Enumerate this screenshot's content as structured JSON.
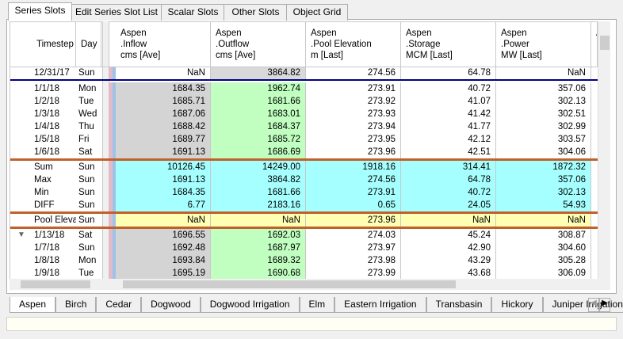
{
  "tabs": [
    "Series Slots",
    "Edit Series Slot List",
    "Scalar Slots",
    "Other Slots",
    "Object Grid"
  ],
  "grid": {
    "row_header_labels": [
      "Timestep",
      "Day"
    ],
    "columns": [
      [
        "Aspen",
        ".Inflow",
        "cms [Ave]"
      ],
      [
        "Aspen",
        ".Outflow",
        "cms [Ave]"
      ],
      [
        "Aspen",
        ".Pool Elevation",
        "m [Last]"
      ],
      [
        "Aspen",
        ".Storage",
        "MCM [Last]"
      ],
      [
        "Aspen",
        ".Power",
        "MW [Last]"
      ],
      [
        "A",
        "."
      ]
    ],
    "initial_rows": [
      {
        "timestep": "12/31/17",
        "day": "Sun",
        "cells": [
          "NaN",
          "3864.82",
          "274.56",
          "64.78",
          "NaN"
        ]
      }
    ],
    "rows": [
      {
        "timestep": "1/1/18",
        "day": "Mon",
        "cells": [
          "1684.35",
          "1962.74",
          "273.91",
          "40.72",
          "357.06"
        ]
      },
      {
        "timestep": "1/2/18",
        "day": "Tue",
        "cells": [
          "1685.71",
          "1681.66",
          "273.92",
          "41.07",
          "302.13"
        ]
      },
      {
        "timestep": "1/3/18",
        "day": "Wed",
        "cells": [
          "1687.06",
          "1683.01",
          "273.93",
          "41.42",
          "302.51"
        ]
      },
      {
        "timestep": "1/4/18",
        "day": "Thu",
        "cells": [
          "1688.42",
          "1684.37",
          "273.94",
          "41.77",
          "302.99"
        ]
      },
      {
        "timestep": "1/5/18",
        "day": "Fri",
        "cells": [
          "1689.77",
          "1685.72",
          "273.95",
          "42.12",
          "303.57"
        ]
      },
      {
        "timestep": "1/6/18",
        "day": "Sat",
        "cells": [
          "1691.13",
          "1686.69",
          "273.96",
          "42.51",
          "304.06"
        ]
      }
    ],
    "summary_rows": [
      {
        "timestep": "Sum",
        "day": "Sun",
        "cells": [
          "10126.45",
          "14249.00",
          "1918.16",
          "314.41",
          "1872.32"
        ]
      },
      {
        "timestep": "Max",
        "day": "Sun",
        "cells": [
          "1691.13",
          "3864.82",
          "274.56",
          "64.78",
          "357.06"
        ]
      },
      {
        "timestep": "Min",
        "day": "Sun",
        "cells": [
          "1684.35",
          "1681.66",
          "273.91",
          "40.72",
          "302.13"
        ]
      },
      {
        "timestep": "DIFF",
        "day": "Sun",
        "cells": [
          "6.77",
          "2183.16",
          "0.65",
          "24.05",
          "54.93"
        ]
      }
    ],
    "pool_rows": [
      {
        "timestep": "Pool Elevat",
        "day": "Sun",
        "cells": [
          "NaN",
          "NaN",
          "273.96",
          "NaN",
          "NaN"
        ]
      }
    ],
    "later_rows": [
      {
        "timestep": "1/13/18",
        "day": "Sat",
        "cells": [
          "1696.55",
          "1692.03",
          "274.03",
          "45.24",
          "308.87"
        ]
      },
      {
        "timestep": "1/7/18",
        "day": "Sun",
        "cells": [
          "1692.48",
          "1687.97",
          "273.97",
          "42.90",
          "304.60"
        ]
      },
      {
        "timestep": "1/8/18",
        "day": "Mon",
        "cells": [
          "1693.84",
          "1689.32",
          "273.98",
          "43.29",
          "305.28"
        ]
      },
      {
        "timestep": "1/9/18",
        "day": "Tue",
        "cells": [
          "1695.19",
          "1690.68",
          "273.99",
          "43.68",
          "306.09"
        ]
      }
    ]
  },
  "object_tabs": [
    "Aspen",
    "Birch",
    "Cedar",
    "Dogwood",
    "Dogwood Irrigation",
    "Elm",
    "Eastern Irrigation",
    "Transbasin",
    "Hickory",
    "Juniper Irrigation"
  ]
}
